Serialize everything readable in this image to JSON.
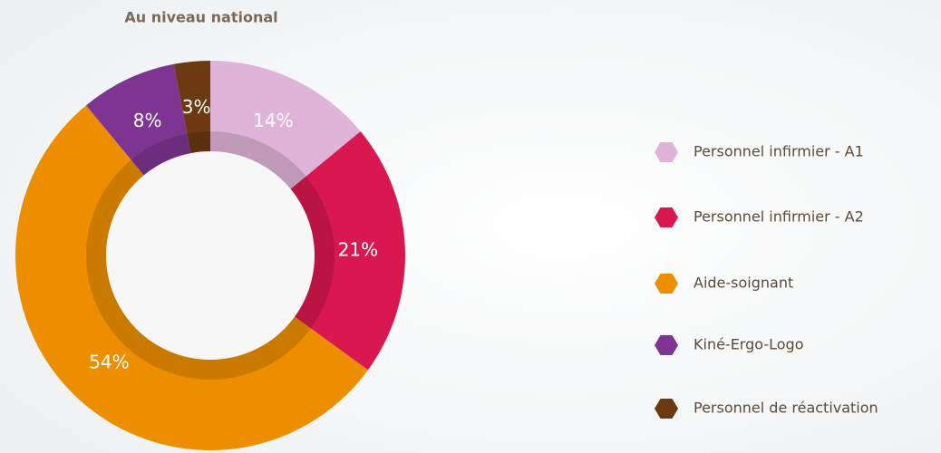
{
  "chart_data": {
    "type": "pie",
    "title": "Au niveau national",
    "categories": [
      "Personnel infirmier - A1",
      "Personnel infirmier - A2",
      "Aide-soignant",
      "Kiné-Ergo-Logo",
      "Personnel de réactivation"
    ],
    "values": [
      14,
      21,
      54,
      8,
      3
    ],
    "value_labels": [
      "14%",
      "21%",
      "54%",
      "8%",
      "3%"
    ],
    "colors": [
      "#dfb4d8",
      "#d9184f",
      "#ed8e00",
      "#7e3591",
      "#6b3a10"
    ],
    "donut": true
  }
}
